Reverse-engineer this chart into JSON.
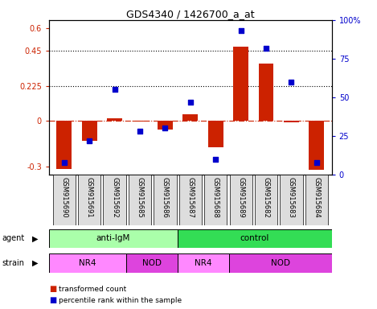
{
  "title": "GDS4340 / 1426700_a_at",
  "samples": [
    "GSM915690",
    "GSM915691",
    "GSM915692",
    "GSM915685",
    "GSM915686",
    "GSM915687",
    "GSM915688",
    "GSM915689",
    "GSM915682",
    "GSM915683",
    "GSM915684"
  ],
  "bar_values": [
    -0.315,
    -0.13,
    0.015,
    -0.005,
    -0.06,
    0.04,
    -0.175,
    0.48,
    0.37,
    -0.01,
    -0.32
  ],
  "percentile_values": [
    8,
    22,
    55,
    28,
    30,
    47,
    10,
    93,
    82,
    60,
    8
  ],
  "agent_groups": [
    {
      "label": "anti-IgM",
      "start": 0,
      "end": 5,
      "color": "#AAFFAA"
    },
    {
      "label": "control",
      "start": 5,
      "end": 11,
      "color": "#33DD55"
    }
  ],
  "strain_groups": [
    {
      "label": "NR4",
      "start": 0,
      "end": 3,
      "color": "#FF88FF"
    },
    {
      "label": "NOD",
      "start": 3,
      "end": 5,
      "color": "#DD44DD"
    },
    {
      "label": "NR4",
      "start": 5,
      "end": 7,
      "color": "#FF88FF"
    },
    {
      "label": "NOD",
      "start": 7,
      "end": 11,
      "color": "#DD44DD"
    }
  ],
  "ylim_left": [
    -0.35,
    0.65
  ],
  "ylim_right": [
    0,
    100
  ],
  "yticks_left": [
    -0.3,
    0.0,
    0.225,
    0.45,
    0.6
  ],
  "yticks_right": [
    0,
    25,
    50,
    75,
    100
  ],
  "ytick_labels_left": [
    "-0.3",
    "0",
    "0.225",
    "0.45",
    "0.6"
  ],
  "ytick_labels_right": [
    "0",
    "25",
    "50",
    "75",
    "100%"
  ],
  "hlines": [
    0.225,
    0.45
  ],
  "bar_color": "#CC2200",
  "scatter_color": "#0000CC",
  "zero_line_color": "#CC2200",
  "label_bar": "transformed count",
  "label_scatter": "percentile rank within the sample",
  "left_label_color": "#CC2200",
  "right_label_color": "#0000CC"
}
